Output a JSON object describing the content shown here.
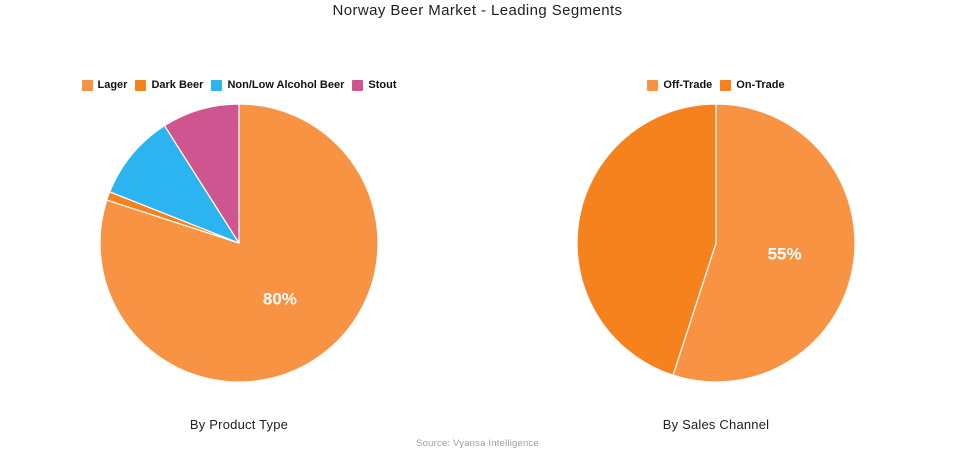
{
  "title": "Norway Beer Market - Leading Segments",
  "source": "Source: Vyansa Intelligence",
  "chart_data": [
    {
      "type": "pie",
      "title": "By Product Type",
      "legend_position": "top",
      "start_angle_deg": 0,
      "direction": "clockwise",
      "data_label_color": "#FFFFFF",
      "slices": [
        {
          "label": "Lager",
          "value": 80,
          "color": "#F79342",
          "data_label": "80%"
        },
        {
          "label": "Dark Beer",
          "value": 1,
          "color": "#F6821E",
          "data_label": ""
        },
        {
          "label": "Non/Low Alcohol Beer",
          "value": 10,
          "color": "#2CB4F0",
          "data_label": ""
        },
        {
          "label": "Stout",
          "value": 9,
          "color": "#CF5590",
          "data_label": ""
        }
      ]
    },
    {
      "type": "pie",
      "title": "By Sales Channel",
      "legend_position": "top",
      "start_angle_deg": 0,
      "direction": "clockwise",
      "data_label_color": "#FFFFFF",
      "slices": [
        {
          "label": "Off-Trade",
          "value": 55,
          "color": "#F79342",
          "data_label": "55%"
        },
        {
          "label": "On-Trade",
          "value": 45,
          "color": "#F6821E",
          "data_label": ""
        }
      ]
    }
  ]
}
